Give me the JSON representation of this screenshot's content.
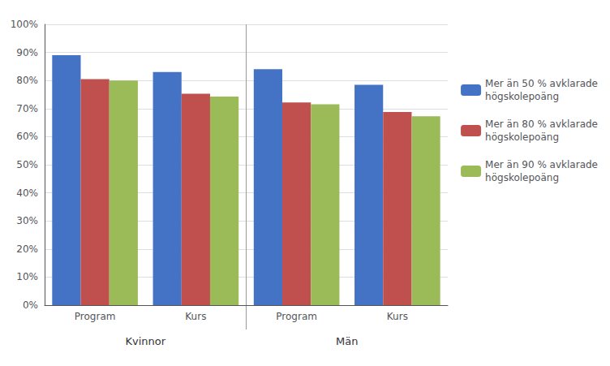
{
  "chart_data": {
    "type": "bar",
    "categories": [
      "Program",
      "Kurs",
      "Program",
      "Kurs"
    ],
    "annotations": [
      "Kvinnor",
      "Män"
    ],
    "series": [
      {
        "name": "Mer än 50 % avklarade\nhögskolepoäng",
        "color": "#4472C4",
        "values": [
          0.89,
          0.83,
          0.84,
          0.785
        ]
      },
      {
        "name": "Mer än 80 % avklarade\nhögskolepoäng",
        "color": "#C0504D",
        "values": [
          0.805,
          0.753,
          0.722,
          0.688
        ]
      },
      {
        "name": "Mer än 90 % avklarade\nhögskolepoäng",
        "color": "#9BBB59",
        "values": [
          0.8,
          0.743,
          0.715,
          0.673
        ]
      }
    ],
    "ylim": [
      0,
      1.0
    ],
    "yticks": [
      {
        "value": 0.0,
        "label": "0%"
      },
      {
        "value": 0.1,
        "label": "10%"
      },
      {
        "value": 0.2,
        "label": "20%"
      },
      {
        "value": 0.3,
        "label": "30%"
      },
      {
        "value": 0.4,
        "label": "40%"
      },
      {
        "value": 0.5,
        "label": "50%"
      },
      {
        "value": 0.6,
        "label": "60%"
      },
      {
        "value": 0.7,
        "label": "70%"
      },
      {
        "value": 0.8,
        "label": "80%"
      },
      {
        "value": 0.9,
        "label": "90%"
      },
      {
        "value": 1.0,
        "label": "100%"
      }
    ],
    "grid": true,
    "legend": "right"
  }
}
